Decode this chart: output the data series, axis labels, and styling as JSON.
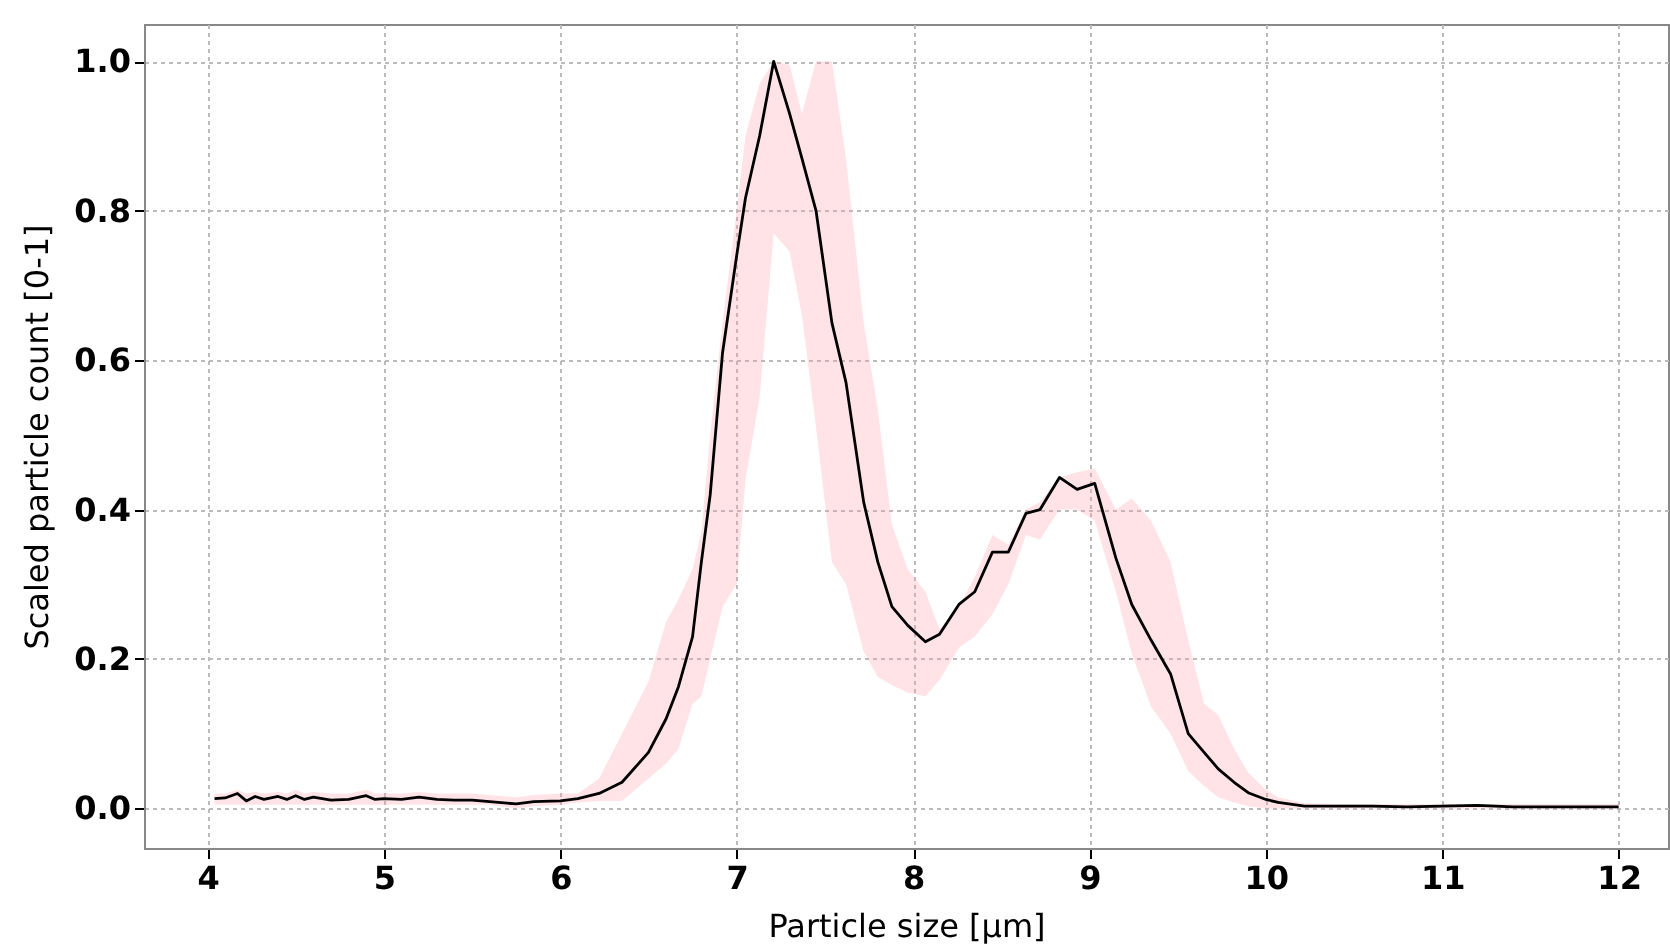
{
  "chart_data": {
    "type": "line",
    "xlabel": "Particle size [μm]",
    "ylabel": "Scaled particle count [0-1]",
    "xlim": [
      3.64,
      12.28
    ],
    "ylim": [
      -0.053,
      1.05
    ],
    "xticks": [
      4,
      5,
      6,
      7,
      8,
      9,
      10,
      11,
      12
    ],
    "yticks": [
      {
        "value": 0,
        "label": "0.0"
      },
      {
        "value": 0.2,
        "label": "0.2"
      },
      {
        "value": 0.4,
        "label": "0.4"
      },
      {
        "value": 0.6,
        "label": "0.6"
      },
      {
        "value": 0.8,
        "label": "0.8"
      },
      {
        "value": 1,
        "label": "1.0"
      }
    ],
    "grid": true,
    "line_style": "solid",
    "marker": "none",
    "x": [
      4.04,
      4.1,
      4.17,
      4.22,
      4.27,
      4.32,
      4.4,
      4.45,
      4.5,
      4.55,
      4.6,
      4.7,
      4.8,
      4.9,
      4.95,
      5.0,
      5.1,
      5.2,
      5.3,
      5.4,
      5.5,
      5.6,
      5.75,
      5.85,
      6.0,
      6.1,
      6.22,
      6.35,
      6.5,
      6.6,
      6.67,
      6.75,
      6.8,
      6.85,
      6.92,
      7.0,
      7.05,
      7.13,
      7.21,
      7.3,
      7.37,
      7.45,
      7.54,
      7.62,
      7.72,
      7.8,
      7.88,
      7.97,
      8.07,
      8.15,
      8.26,
      8.35,
      8.45,
      8.54,
      8.64,
      8.72,
      8.83,
      8.93,
      9.03,
      9.15,
      9.24,
      9.35,
      9.46,
      9.56,
      9.65,
      9.73,
      9.82,
      9.9,
      10.0,
      10.07,
      10.22,
      10.4,
      10.6,
      10.8,
      11.0,
      11.2,
      11.4,
      11.6,
      11.8,
      12.0
    ],
    "series": [
      {
        "color": "#000000",
        "values": [
          0.013,
          0.014,
          0.02,
          0.01,
          0.016,
          0.012,
          0.016,
          0.012,
          0.017,
          0.012,
          0.015,
          0.011,
          0.012,
          0.017,
          0.012,
          0.013,
          0.012,
          0.015,
          0.012,
          0.011,
          0.011,
          0.009,
          0.006,
          0.009,
          0.01,
          0.013,
          0.02,
          0.035,
          0.075,
          0.12,
          0.163,
          0.23,
          0.33,
          0.42,
          0.61,
          0.74,
          0.817,
          0.9,
          1.0,
          0.93,
          0.87,
          0.8,
          0.65,
          0.57,
          0.41,
          0.33,
          0.27,
          0.245,
          0.223,
          0.233,
          0.273,
          0.29,
          0.343,
          0.343,
          0.395,
          0.4,
          0.443,
          0.427,
          0.435,
          0.335,
          0.273,
          0.225,
          0.18,
          0.1,
          0.075,
          0.053,
          0.035,
          0.021,
          0.012,
          0.008,
          0.003,
          0.003,
          0.003,
          0.002,
          0.003,
          0.004,
          0.002,
          0.002,
          0.002,
          0.002
        ],
        "lower": [
          0.005,
          0.005,
          0.005,
          0.005,
          0.005,
          0.005,
          0.005,
          0.005,
          0.005,
          0.005,
          0.005,
          0.005,
          0.005,
          0.005,
          0.005,
          0.005,
          0.005,
          0.005,
          0.005,
          0.005,
          0.005,
          0.005,
          0.0,
          0.003,
          0.005,
          0.008,
          0.01,
          0.01,
          0.04,
          0.06,
          0.08,
          0.14,
          0.15,
          0.2,
          0.27,
          0.3,
          0.44,
          0.55,
          0.77,
          0.745,
          0.66,
          0.51,
          0.33,
          0.3,
          0.21,
          0.176,
          0.165,
          0.155,
          0.15,
          0.172,
          0.215,
          0.23,
          0.26,
          0.3,
          0.366,
          0.36,
          0.4,
          0.4,
          0.385,
          0.29,
          0.207,
          0.136,
          0.1,
          0.05,
          0.03,
          0.015,
          0.008,
          0.003,
          0.0,
          0.0,
          0.0,
          0.0,
          0.0,
          0.0,
          0.0,
          0.0,
          0.0,
          0.0,
          0.0,
          0.0
        ],
        "upper": [
          0.02,
          0.02,
          0.025,
          0.02,
          0.022,
          0.02,
          0.022,
          0.02,
          0.025,
          0.02,
          0.022,
          0.02,
          0.02,
          0.025,
          0.02,
          0.02,
          0.02,
          0.022,
          0.02,
          0.02,
          0.02,
          0.018,
          0.015,
          0.018,
          0.02,
          0.02,
          0.04,
          0.1,
          0.17,
          0.25,
          0.28,
          0.32,
          0.37,
          0.5,
          0.65,
          0.8,
          0.9,
          0.97,
          1.0,
          0.995,
          0.93,
          1.0,
          1.0,
          0.87,
          0.65,
          0.534,
          0.38,
          0.32,
          0.29,
          0.24,
          0.27,
          0.31,
          0.366,
          0.353,
          0.4,
          0.41,
          0.443,
          0.45,
          0.455,
          0.4,
          0.415,
          0.385,
          0.33,
          0.225,
          0.14,
          0.125,
          0.08,
          0.048,
          0.025,
          0.015,
          0.007,
          0.006,
          0.006,
          0.006,
          0.006,
          0.006,
          0.006,
          0.006,
          0.006,
          0.006
        ]
      }
    ]
  }
}
